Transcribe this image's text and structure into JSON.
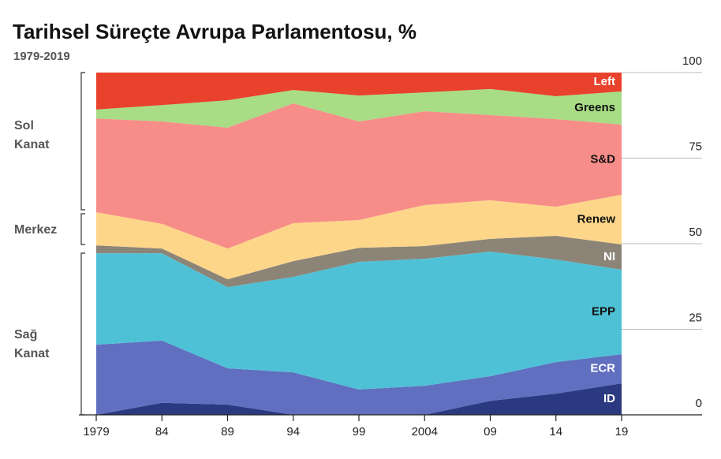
{
  "chart_data": {
    "type": "stacked_area",
    "title": "Tarihsel Süreçte Avrupa Parlamentosu, %",
    "subtitle": "1979-2019",
    "groups": [
      [
        "Sol",
        "Kanat"
      ],
      [
        "Merkez"
      ],
      [
        "Sağ",
        "Kanat"
      ]
    ],
    "x": [
      1979,
      1984,
      1989,
      1994,
      1999,
      2004,
      2009,
      2014,
      2019
    ],
    "xlim": [
      1979,
      2019
    ],
    "xticks": [
      1979,
      {
        "value": 1984,
        "label": "84"
      },
      {
        "value": 1989,
        "label": "89"
      },
      {
        "value": 1994,
        "label": "94"
      },
      {
        "value": 1999,
        "label": "99"
      },
      2004,
      {
        "value": 2009,
        "label": "09"
      },
      {
        "value": 2014,
        "label": "14"
      },
      {
        "value": 2019,
        "label": "19"
      }
    ],
    "ylim": [
      0,
      100
    ],
    "yticks": [
      0,
      25,
      50,
      75,
      100
    ],
    "series": [
      {
        "name": "ID",
        "color": "#2b3a80",
        "label_color": "#ffffff",
        "values": [
          0,
          3.5,
          3.0,
          0,
          0,
          0,
          4.1,
          6.2,
          9.2
        ]
      },
      {
        "name": "ECR",
        "color": "#606fbf",
        "label_color": "#ffffff",
        "values": [
          20.5,
          18.2,
          10.6,
          12.4,
          7.4,
          8.5,
          7.2,
          9.2,
          8.5
        ]
      },
      {
        "name": "EPP",
        "color": "#4fc1d6",
        "label_color": "#111111",
        "values": [
          26.7,
          25.5,
          23.7,
          27.9,
          37.3,
          37.1,
          36.4,
          30.0,
          24.7
        ]
      },
      {
        "name": "NI",
        "color": "#8c8577",
        "label_color": "#ffffff",
        "values": [
          2.3,
          1.4,
          2.3,
          4.6,
          4.1,
          3.7,
          3.7,
          6.9,
          7.4
        ]
      },
      {
        "name": "Renew",
        "color": "#fdd68a",
        "label_color": "#111111",
        "values": [
          9.7,
          7.2,
          9.0,
          11.1,
          8.1,
          12.0,
          11.3,
          8.5,
          14.5
        ]
      },
      {
        "name": "S&D",
        "color": "#f78d88",
        "label_color": "#111111",
        "values": [
          27.4,
          29.9,
          35.3,
          35.0,
          28.8,
          27.4,
          24.9,
          25.6,
          20.5
        ]
      },
      {
        "name": "Greens",
        "color": "#a8dc85",
        "label_color": "#111111",
        "values": [
          2.6,
          4.8,
          8.0,
          3.9,
          7.6,
          5.5,
          7.6,
          6.7,
          9.7
        ]
      },
      {
        "name": "Left",
        "color": "#e8412c",
        "label_color": "#ffffff",
        "values": [
          10.8,
          9.5,
          8.1,
          5.1,
          6.7,
          5.8,
          4.8,
          6.9,
          5.5
        ]
      }
    ]
  }
}
